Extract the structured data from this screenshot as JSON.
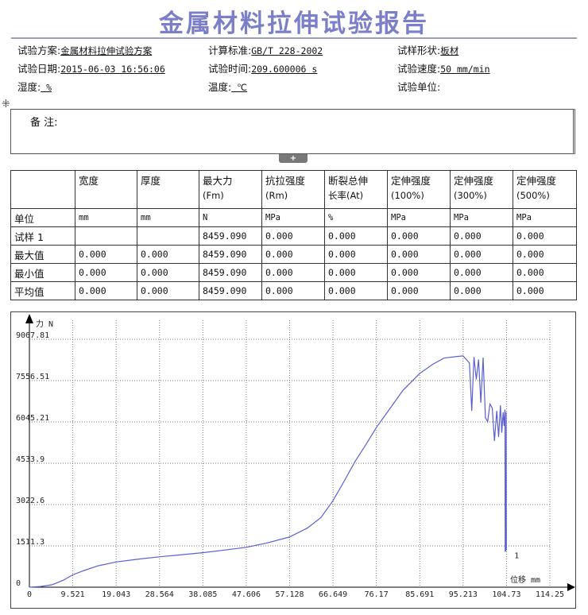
{
  "report": {
    "title": "金属材料拉伸试验报告",
    "info": [
      {
        "label": "试验方案:",
        "value": "金属材料拉伸试验方案"
      },
      {
        "label": "计算标准:",
        "value": "GB/T 228-2002"
      },
      {
        "label": "试样形状:",
        "value": "板材"
      },
      {
        "label": "试验日期:",
        "value": "2015-06-03 16:56:06"
      },
      {
        "label": "试验时间:",
        "value": "209.600006 s"
      },
      {
        "label": "试验速度:",
        "value": "50 mm/min"
      },
      {
        "label": "湿度:",
        "value": " %"
      },
      {
        "label": "温度:",
        "value": " ℃"
      },
      {
        "label": "试验单位:",
        "value": "  "
      }
    ],
    "remarks_label": "备  注:",
    "expand_symbol": "+",
    "drag_symbol": "⁜"
  },
  "table": {
    "headers": [
      {
        "l1": "",
        "l2": ""
      },
      {
        "l1": "宽度",
        "l2": ""
      },
      {
        "l1": "厚度",
        "l2": ""
      },
      {
        "l1": "最大力",
        "l2": "(Fm)"
      },
      {
        "l1": "抗拉强度",
        "l2": "(Rm)"
      },
      {
        "l1": "断裂总伸",
        "l2": "长率(At)"
      },
      {
        "l1": "定伸强度",
        "l2": "(100%)"
      },
      {
        "l1": "定伸强度",
        "l2": "(300%)"
      },
      {
        "l1": "定伸强度",
        "l2": "(500%)"
      }
    ],
    "rows": [
      [
        "单位",
        "mm",
        "mm",
        "N",
        "MPa",
        "%",
        "MPa",
        "MPa",
        "MPa"
      ],
      [
        "试样 1",
        "",
        "",
        "8459.090",
        "0.000",
        "0.000",
        "0.000",
        "0.000",
        "0.000"
      ],
      [
        "最大值",
        "0.000",
        "0.000",
        "8459.090",
        "0.000",
        "0.000",
        "0.000",
        "0.000",
        "0.000"
      ],
      [
        "最小值",
        "0.000",
        "0.000",
        "8459.090",
        "0.000",
        "0.000",
        "0.000",
        "0.000",
        "0.000"
      ],
      [
        "平均值",
        "0.000",
        "0.000",
        "8459.090",
        "0.000",
        "0.000",
        "0.000",
        "0.000",
        "0.000"
      ]
    ]
  },
  "chart_data": {
    "type": "line",
    "ylabel": "力 N",
    "xlabel": "位移 mm",
    "yticks": [
      "0",
      "1511.3",
      "3022.6",
      "4533.9",
      "6045.21",
      "7556.51",
      "9067.81"
    ],
    "xticks": [
      "0",
      "9.521",
      "19.043",
      "28.564",
      "38.085",
      "47.606",
      "57.128",
      "66.649",
      "76.17",
      "85.691",
      "95.213",
      "104.73",
      "114.25"
    ],
    "xlim": [
      0,
      114.25
    ],
    "ylim": [
      0,
      9067.81
    ],
    "grid": true,
    "series": [
      {
        "name": "1",
        "color": "#5a5fd0",
        "x": [
          0,
          2.5,
          5,
          7.5,
          9.5,
          12,
          15,
          19,
          24,
          28.5,
          33,
          38,
          43,
          47.6,
          52,
          57,
          61,
          64,
          66.6,
          69,
          71.5,
          74,
          76.2,
          79,
          82,
          85.7,
          88.5,
          91,
          93.5,
          95.2,
          96.6,
          97.1,
          97.6,
          98.1,
          98.6,
          99.1,
          99.6,
          100.1,
          100.6,
          101.1,
          101.6,
          102.1,
          102.6,
          103.0,
          103.4,
          103.7,
          104.0,
          104.2,
          104.4,
          104.45,
          104.6,
          104.65,
          104.7
        ],
        "y": [
          0,
          25,
          90,
          260,
          450,
          610,
          780,
          920,
          1030,
          1110,
          1180,
          1260,
          1360,
          1460,
          1610,
          1830,
          2160,
          2550,
          3150,
          3850,
          4600,
          5250,
          5850,
          6500,
          7200,
          7820,
          8150,
          8380,
          8430,
          8459,
          8200,
          6450,
          8420,
          7600,
          8330,
          6750,
          8400,
          6200,
          6050,
          6700,
          6550,
          5350,
          6450,
          5500,
          6650,
          5650,
          6400,
          5900,
          6500,
          1300,
          1350,
          6400,
          1350
        ]
      }
    ],
    "annotation": "1"
  }
}
